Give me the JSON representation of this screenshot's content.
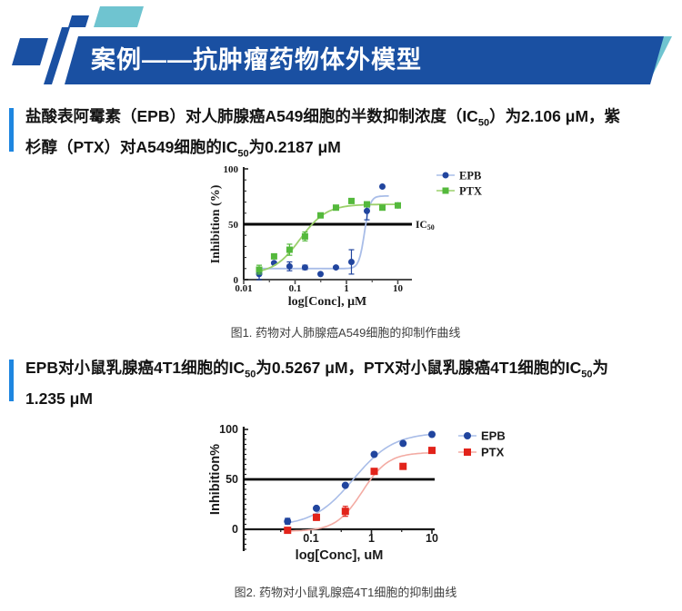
{
  "header": {
    "title": "案例——抗肿瘤药物体外模型"
  },
  "colors": {
    "banner_blue": "#1a50a2",
    "teal_accent": "#6fc4d0",
    "accent_bar_blue": "#1e86e0",
    "epb_blue": "#21459e",
    "epb_curve_blue": "#a9bde8",
    "ptx_green": "#54b93c",
    "ptx_green_curve": "#9bd06b",
    "ptx_red": "#e2231a",
    "ptx_red_curve": "#f3aba3",
    "ref_line_black": "#000000"
  },
  "sections": [
    {
      "segments": [
        {
          "t": "盐酸表阿霉素（EPB）对人肺腺癌A549细胞的半数抑制浓度（IC"
        },
        {
          "t": "50",
          "sub": true
        },
        {
          "t": "）为2.106 μM，紫"
        },
        {
          "br": true
        },
        {
          "t": "杉醇（PTX）对A549细胞的IC"
        },
        {
          "t": "50",
          "sub": true
        },
        {
          "t": "为0.2187 μM"
        }
      ],
      "caption": "图1. 药物对人肺腺癌A549细胞的抑制作曲线"
    },
    {
      "segments": [
        {
          "t": "EPB对小鼠乳腺癌4T1细胞的IC"
        },
        {
          "t": "50",
          "sub": true
        },
        {
          "t": "为0.5267 μM，PTX对小鼠乳腺癌4T1细胞的IC"
        },
        {
          "t": "50",
          "sub": true
        },
        {
          "t": "为"
        },
        {
          "br": true
        },
        {
          "t": "1.235 μM"
        }
      ],
      "caption": "图2. 药物对小鼠乳腺癌4T1细胞的抑制曲线"
    }
  ],
  "chart_data": [
    {
      "type": "scatter",
      "title": "",
      "xlabel": "log[Conc], μM",
      "ylabel": "Inhibition (%)",
      "x_scale": "log",
      "xlim": [
        0.01,
        12
      ],
      "ylim": [
        0,
        100
      ],
      "x_ticks": [
        0.01,
        0.1,
        1,
        10
      ],
      "x_tick_labels": [
        "0.01",
        "0.1",
        "1",
        "10"
      ],
      "y_ticks": [
        0,
        50,
        100
      ],
      "grid": false,
      "legend_position": "outside-top-right",
      "ref_line": {
        "y": 50,
        "label": "IC",
        "label_sub": "50"
      },
      "series": [
        {
          "name": "EPB",
          "marker": "circle",
          "color": "#21459e",
          "curve_color": "#a9bde8",
          "x": [
            0.02,
            0.039,
            0.078,
            0.156,
            0.313,
            0.625,
            1.25,
            2.5,
            5,
            10
          ],
          "y": [
            5,
            15,
            12,
            11,
            5,
            11,
            16,
            62,
            84,
            67
          ],
          "err": [
            5,
            0,
            4,
            2,
            0,
            0,
            11,
            8,
            0,
            0
          ],
          "curve": {
            "bottom": 10,
            "top": 75.5,
            "xmid": 2.25,
            "hill": 8,
            "range": [
              0.018,
              6.5
            ]
          }
        },
        {
          "name": "PTX",
          "marker": "square",
          "color": "#54b93c",
          "curve_color": "#9bd06b",
          "x": [
            0.02,
            0.039,
            0.078,
            0.156,
            0.313,
            0.625,
            1.25,
            2.5,
            5,
            10
          ],
          "y": [
            9,
            21,
            27,
            39,
            58,
            65,
            71,
            68,
            65,
            67
          ],
          "err": [
            4,
            2,
            5,
            4,
            2,
            0,
            0,
            0,
            0,
            0
          ],
          "curve": {
            "bottom": 5,
            "top": 68,
            "xmid": 0.125,
            "hill": 1.7,
            "range": [
              0.018,
              10
            ]
          }
        }
      ]
    },
    {
      "type": "scatter",
      "title": "",
      "xlabel": "log[Conc], uM",
      "ylabel": "Inhibition%",
      "x_scale": "log",
      "xlim": [
        0.008,
        10
      ],
      "ylim": [
        -20,
        100
      ],
      "x_ticks": [
        0.1,
        1,
        10
      ],
      "x_tick_labels": [
        "0.1",
        "1",
        "10"
      ],
      "y_ticks": [
        0,
        50,
        100
      ],
      "grid": false,
      "legend_position": "outside-top-right",
      "ref_line": {
        "y": 50
      },
      "series": [
        {
          "name": "EPB",
          "marker": "circle",
          "color": "#21459e",
          "curve_color": "#a9bde8",
          "x": [
            0.041,
            0.123,
            0.37,
            1.11,
            3.33,
            10
          ],
          "y": [
            8,
            21,
            44,
            75,
            86,
            95
          ],
          "err": [
            3,
            0,
            0,
            0,
            0,
            0
          ],
          "curve": {
            "bottom": 3,
            "top": 97,
            "xmid": 0.5,
            "hill": 1.3,
            "range": [
              0.04,
              10
            ]
          }
        },
        {
          "name": "PTX",
          "marker": "square",
          "color": "#e2231a",
          "curve_color": "#f3aba3",
          "x": [
            0.041,
            0.123,
            0.37,
            1.11,
            3.33,
            10
          ],
          "y": [
            -1,
            12,
            18,
            58,
            63,
            79
          ],
          "err": [
            0,
            3,
            5,
            0,
            0,
            0
          ],
          "curve": {
            "bottom": -2,
            "top": 77,
            "xmid": 0.7,
            "hill": 2.0,
            "range": [
              0.04,
              10
            ]
          }
        }
      ]
    }
  ]
}
